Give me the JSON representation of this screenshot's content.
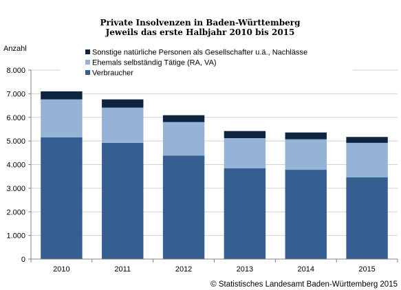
{
  "chart_data": {
    "type": "bar",
    "stacked": true,
    "title": "Private Insolvenzen in Baden-Württemberg",
    "subtitle": "Jeweils das erste Halbjahr 2010 bis 2015",
    "ylabel": "Anzahl",
    "xlabel": "",
    "ylim": [
      0,
      8000
    ],
    "yticks": [
      "0",
      "1.000",
      "2.000",
      "3.000",
      "4.000",
      "5.000",
      "6.000",
      "7.000",
      "8.000"
    ],
    "ytick_values": [
      0,
      1000,
      2000,
      3000,
      4000,
      5000,
      6000,
      7000,
      8000
    ],
    "categories": [
      "2010",
      "2011",
      "2012",
      "2013",
      "2014",
      "2015"
    ],
    "series": [
      {
        "name": "Verbraucher",
        "color": "#365f91",
        "values": [
          5150,
          4920,
          4380,
          3840,
          3780,
          3460
        ]
      },
      {
        "name": "Ehemals selbständig Tätige (RA, VA)",
        "color": "#95b3d7",
        "values": [
          1610,
          1490,
          1420,
          1280,
          1290,
          1460
        ]
      },
      {
        "name": "Sonstige natürliche Personen als Gesellschafter u.ä., Nachlässe",
        "color": "#0f243e",
        "values": [
          340,
          350,
          290,
          300,
          290,
          250
        ]
      }
    ],
    "grid": true,
    "legend_position": "top-center",
    "source": "© Statistisches Landesamt Baden-Württemberg 2015"
  }
}
